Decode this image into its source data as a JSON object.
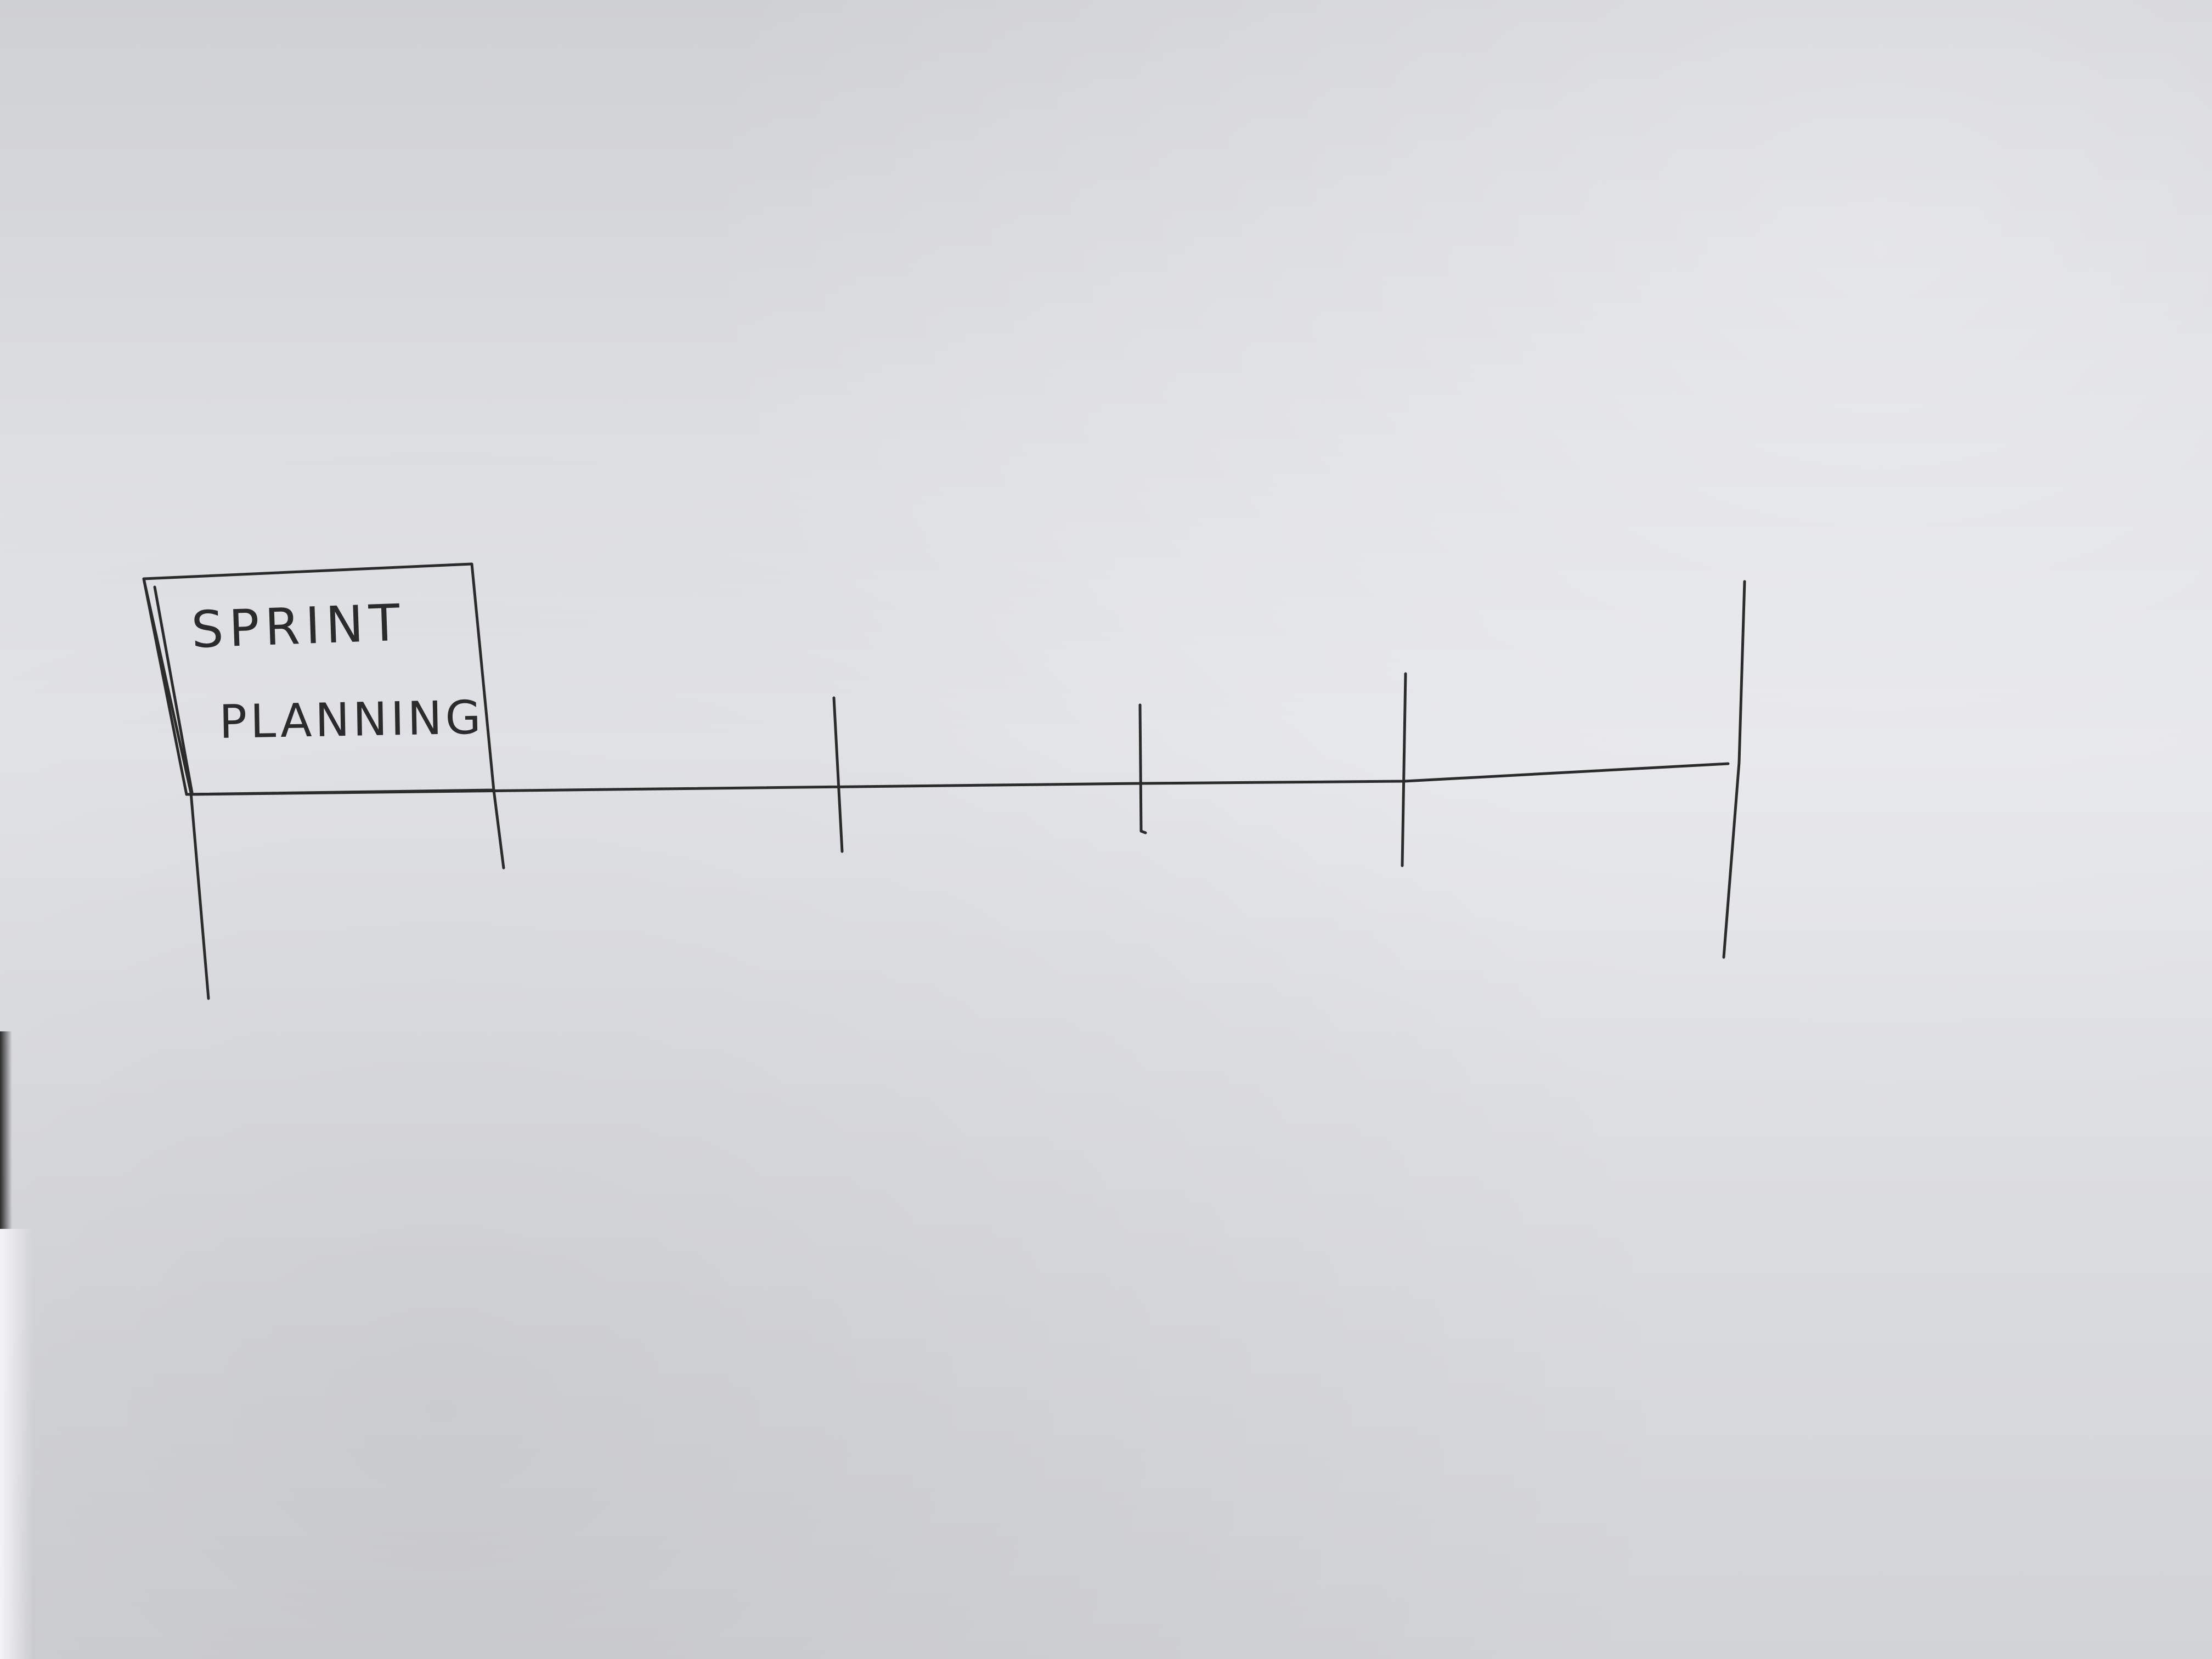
{
  "diagram": {
    "box_label_line1": "SPRINT",
    "box_label_line2": "PLANNING",
    "timeline_markers": 5
  },
  "colors": {
    "ink": "#2b2b2b",
    "paper": "#e0e1e4"
  }
}
